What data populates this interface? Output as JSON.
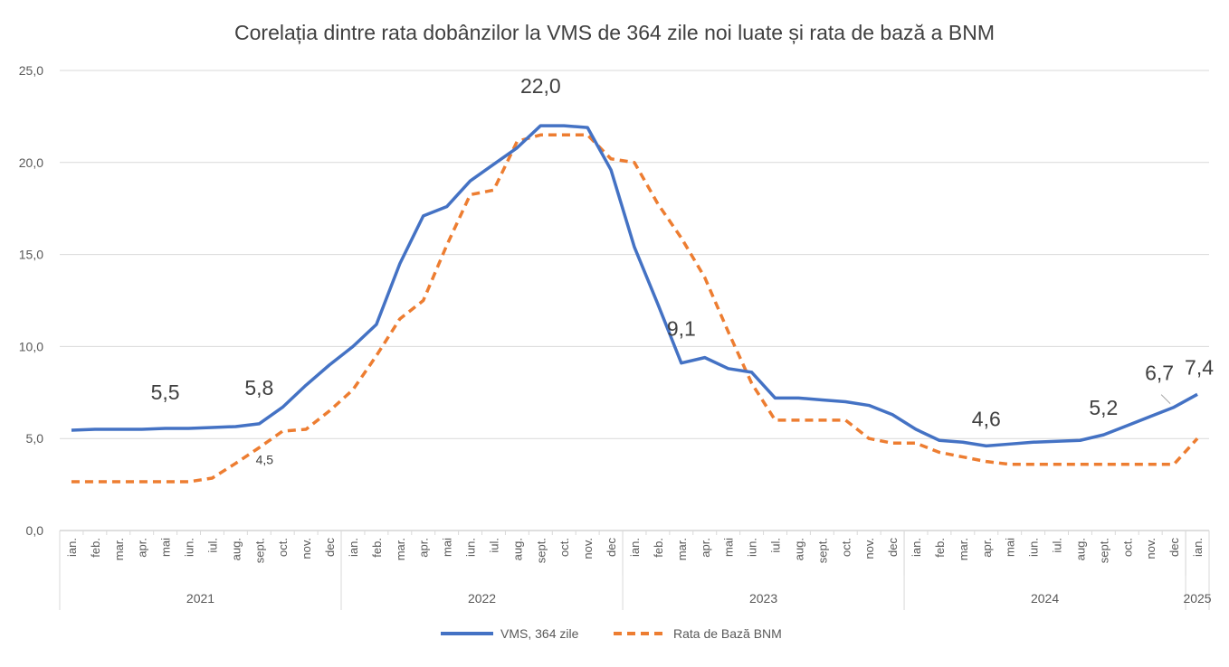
{
  "chart_data": {
    "type": "line",
    "title": "Corelația dintre rata dobânzilor la VMS de 364 zile noi luate și rata de bază a BNM",
    "xlabel": "",
    "ylabel": "",
    "ylim": [
      0,
      25
    ],
    "yticks": [
      "0,0",
      "5,0",
      "10,0",
      "15,0",
      "20,0",
      "25,0"
    ],
    "ytick_values": [
      0,
      5,
      10,
      15,
      20,
      25
    ],
    "grid": true,
    "legend_position": "bottom",
    "years": [
      {
        "label": "2021",
        "months": 12
      },
      {
        "label": "2022",
        "months": 12
      },
      {
        "label": "2023",
        "months": 12
      },
      {
        "label": "2024",
        "months": 12
      },
      {
        "label": "2025",
        "months": 1
      }
    ],
    "categories": [
      "ian.",
      "feb.",
      "mar.",
      "apr.",
      "mai",
      "iun.",
      "iul.",
      "aug.",
      "sept.",
      "oct.",
      "nov.",
      "dec",
      "ian.",
      "feb.",
      "mar.",
      "apr.",
      "mai",
      "iun.",
      "iul.",
      "aug.",
      "sept.",
      "oct.",
      "nov.",
      "dec",
      "ian.",
      "feb.",
      "mar.",
      "apr.",
      "mai",
      "iun.",
      "iul.",
      "aug.",
      "sept.",
      "oct.",
      "nov.",
      "dec",
      "ian.",
      "feb.",
      "mar.",
      "apr.",
      "mai",
      "iun.",
      "iul.",
      "aug.",
      "sept.",
      "oct.",
      "nov.",
      "dec",
      "ian."
    ],
    "series": [
      {
        "name": "VMS, 364 zile",
        "color": "#4472C4",
        "dash": false,
        "values": [
          5.45,
          5.5,
          5.5,
          5.5,
          5.55,
          5.55,
          5.6,
          5.65,
          5.8,
          6.7,
          7.9,
          9.0,
          10.0,
          11.2,
          14.5,
          17.1,
          17.6,
          19.0,
          19.9,
          20.8,
          22.0,
          22.0,
          21.9,
          19.6,
          15.4,
          12.3,
          9.1,
          9.4,
          8.8,
          8.6,
          7.2,
          7.2,
          7.1,
          7.0,
          6.8,
          6.3,
          5.5,
          4.9,
          4.8,
          4.6,
          4.7,
          4.8,
          4.85,
          4.9,
          5.2,
          5.7,
          6.2,
          6.7,
          7.4
        ]
      },
      {
        "name": "Rata de Bază BNM",
        "color": "#ED7D31",
        "dash": true,
        "values": [
          2.65,
          2.65,
          2.65,
          2.65,
          2.65,
          2.65,
          2.85,
          3.65,
          4.5,
          5.4,
          5.5,
          6.5,
          7.65,
          9.5,
          11.5,
          12.5,
          15.5,
          18.25,
          18.5,
          21.15,
          21.5,
          21.5,
          21.5,
          20.2,
          20.0,
          17.75,
          15.9,
          13.75,
          10.8,
          8.0,
          6.0,
          6.0,
          6.0,
          6.0,
          5.0,
          4.75,
          4.75,
          4.25,
          4.0,
          3.75,
          3.6,
          3.6,
          3.6,
          3.6,
          3.6,
          3.6,
          3.6,
          3.6,
          5.0
        ]
      }
    ],
    "annotations": [
      {
        "series": 0,
        "index": 4,
        "text": "5,5"
      },
      {
        "series": 0,
        "index": 8,
        "text": "5,8"
      },
      {
        "series": 1,
        "index": 8,
        "text": "4,5"
      },
      {
        "series": 0,
        "index": 20,
        "text": "22,0"
      },
      {
        "series": 0,
        "index": 26,
        "text": "9,1"
      },
      {
        "series": 0,
        "index": 39,
        "text": "4,6"
      },
      {
        "series": 0,
        "index": 44,
        "text": "5,2"
      },
      {
        "series": 0,
        "index": 47,
        "text": "6,7"
      },
      {
        "series": 0,
        "index": 48,
        "text": "7,4"
      }
    ]
  }
}
